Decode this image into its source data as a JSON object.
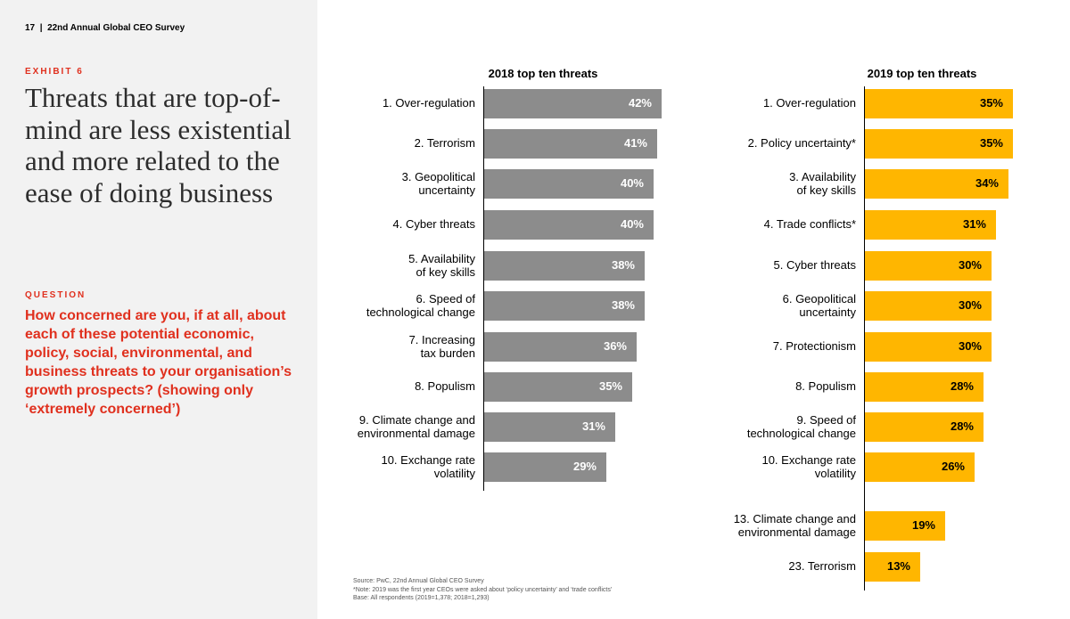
{
  "header": {
    "page_number": "17",
    "separator": "|",
    "survey_name": "22nd Annual Global CEO Survey"
  },
  "exhibit_label": "EXHIBIT 6",
  "title": "Threats that are top-of-mind are less existential and more related to the ease of doing business",
  "question_label": "QUESTION",
  "question_text": "How concerned are you, if at all, about each of these potential economic, policy, social, environmental, and business threats to your organisation’s growth prospects? (showing only ‘extremely concerned’)",
  "colors": {
    "accent_red": "#e0301e",
    "bar_2018": "#8c8c8c",
    "bar_2019": "#ffb600",
    "value_2018": "#ffffff",
    "value_2019": "#000000"
  },
  "chart_data": [
    {
      "type": "bar",
      "orientation": "horizontal",
      "title": "2018 top ten threats",
      "unit": "%",
      "xlim": [
        0,
        42
      ],
      "categories": [
        "1. Over-regulation",
        "2. Terrorism",
        "3. Geopolitical\nuncertainty",
        "4. Cyber threats",
        "5. Availability\nof key skills",
        "6. Speed of\ntechnological change",
        "7. Increasing\ntax burden",
        "8. Populism",
        "9. Climate change and\nenvironmental damage",
        "10. Exchange rate\nvolatility"
      ],
      "values": [
        42,
        41,
        40,
        40,
        38,
        38,
        36,
        35,
        31,
        29
      ],
      "labels": [
        "42%",
        "41%",
        "40%",
        "40%",
        "38%",
        "38%",
        "36%",
        "35%",
        "31%",
        "29%"
      ]
    },
    {
      "type": "bar",
      "orientation": "horizontal",
      "title": "2019 top ten threats",
      "unit": "%",
      "xlim": [
        0,
        42
      ],
      "categories": [
        "1. Over-regulation",
        "2. Policy uncertainty*",
        "3. Availability\nof key skills",
        "4. Trade conflicts*",
        "5. Cyber threats",
        "6. Geopolitical\nuncertainty",
        "7. Protectionism",
        "8. Populism",
        "9. Speed of\ntechnological change",
        "10. Exchange rate\nvolatility",
        "13. Climate change and\nenvironmental damage",
        "23. Terrorism"
      ],
      "values": [
        35,
        35,
        34,
        31,
        30,
        30,
        30,
        28,
        28,
        26,
        19,
        13
      ],
      "labels": [
        "35%",
        "35%",
        "34%",
        "31%",
        "30%",
        "30%",
        "30%",
        "28%",
        "28%",
        "26%",
        "19%",
        "13%"
      ]
    }
  ],
  "footnotes": [
    "Source: PwC, 22nd Annual Global CEO Survey",
    "*Note: 2019 was the first year CEOs were asked about ‘policy uncertainty’ and ‘trade conflicts’",
    "Base: All respondents (2019=1,378; 2018=1,293)"
  ]
}
